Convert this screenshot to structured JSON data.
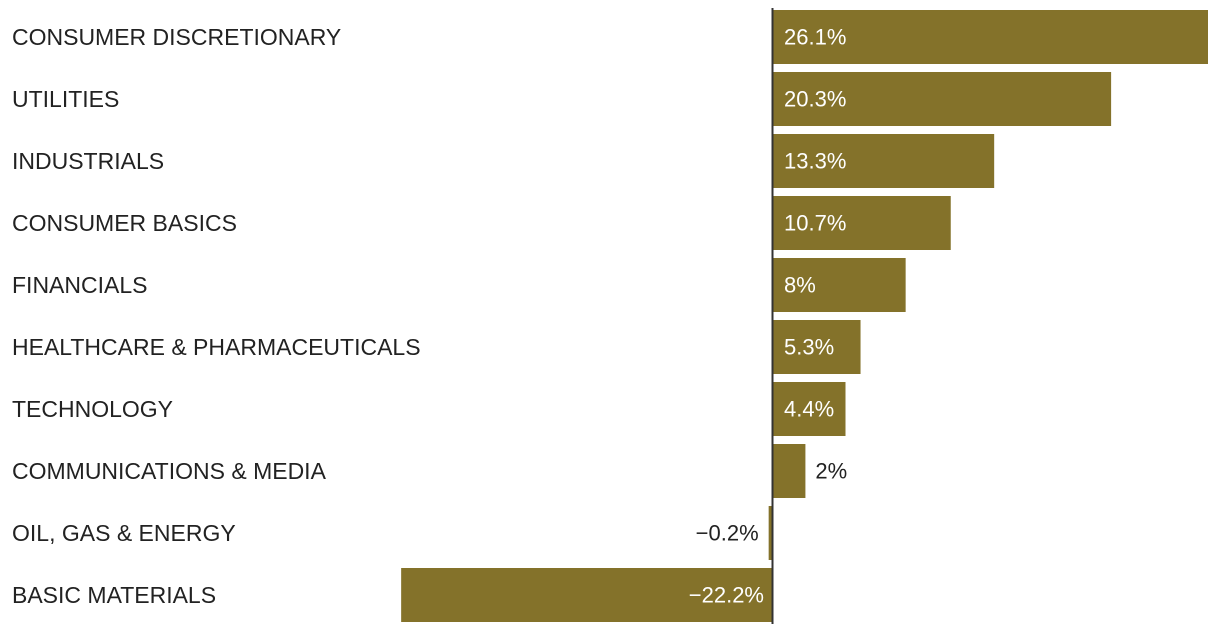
{
  "chart_data": {
    "type": "bar",
    "orientation": "horizontal",
    "categories": [
      "CONSUMER DISCRETIONARY",
      "UTILITIES",
      "INDUSTRIALS",
      "CONSUMER BASICS",
      "FINANCIALS",
      "HEALTHCARE & PHARMACEUTICALS",
      "TECHNOLOGY",
      "COMMUNICATIONS & MEDIA",
      "OIL, GAS & ENERGY",
      "BASIC MATERIALS"
    ],
    "values": [
      26.1,
      20.3,
      13.3,
      10.7,
      8,
      5.3,
      4.4,
      2,
      -0.2,
      -22.2
    ],
    "value_labels": [
      "26.1%",
      "20.3%",
      "13.3%",
      "10.7%",
      "8%",
      "5.3%",
      "4.4%",
      "2%",
      "−0.2%",
      "−22.2%"
    ],
    "title": "",
    "xlabel": "",
    "ylabel": "",
    "xlim": [
      -22.2,
      26.1
    ],
    "grid": false,
    "legend": "none",
    "colors": {
      "bar": "#84722a",
      "axis": "#333333",
      "category_text": "#222222",
      "label_inside": "#ffffff",
      "label_outside": "#222222"
    }
  }
}
